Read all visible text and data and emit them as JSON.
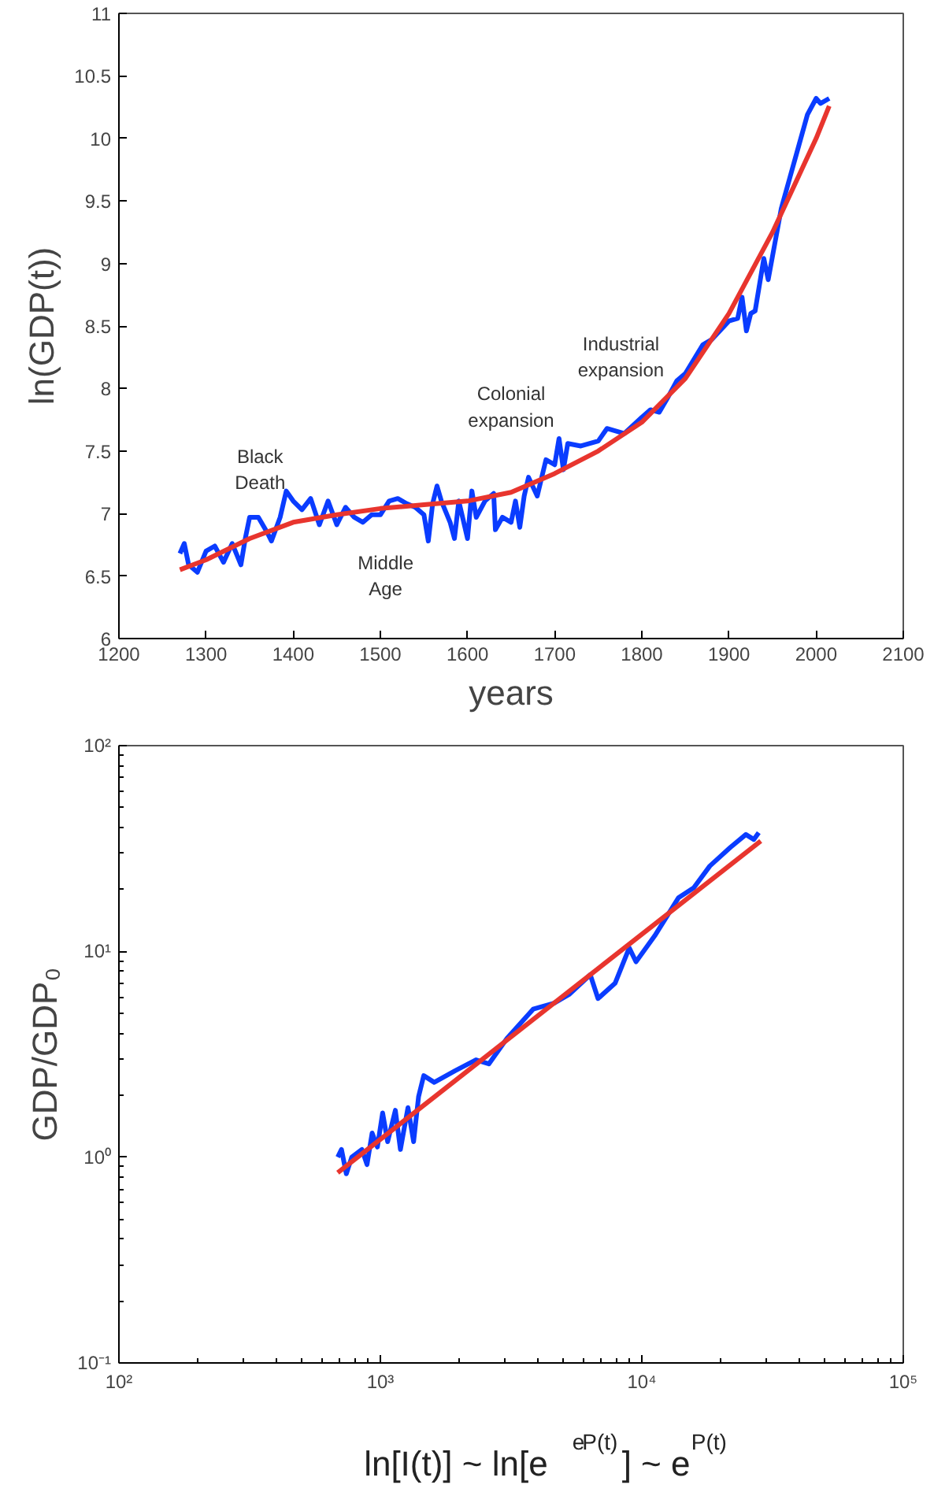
{
  "chart_data": [
    {
      "type": "line",
      "xlabel": "years",
      "ylabel": "ln(GDP(t))",
      "xlim": [
        1200,
        2100
      ],
      "xticks": [
        1200,
        1300,
        1400,
        1500,
        1600,
        1700,
        1800,
        1900,
        2000,
        2100
      ],
      "ylim": [
        6,
        11
      ],
      "yticks": [
        6,
        6.5,
        7,
        7.5,
        8,
        8.5,
        9,
        9.5,
        10,
        10.5,
        11
      ],
      "grid": false,
      "line_style": "solid",
      "series": [
        {
          "color": "#0a3cff",
          "x": [
            1270,
            1275,
            1280,
            1290,
            1300,
            1310,
            1320,
            1330,
            1340,
            1345,
            1350,
            1360,
            1370,
            1375,
            1385,
            1392,
            1400,
            1410,
            1420,
            1430,
            1440,
            1450,
            1460,
            1470,
            1480,
            1490,
            1500,
            1510,
            1520,
            1530,
            1540,
            1550,
            1555,
            1560,
            1565,
            1570,
            1580,
            1585,
            1590,
            1600,
            1605,
            1610,
            1620,
            1630,
            1632,
            1640,
            1650,
            1655,
            1660,
            1665,
            1670,
            1680,
            1690,
            1700,
            1705,
            1710,
            1715,
            1730,
            1750,
            1760,
            1780,
            1800,
            1810,
            1820,
            1830,
            1840,
            1850,
            1870,
            1880,
            1900,
            1910,
            1915,
            1920,
            1925,
            1930,
            1940,
            1945,
            1950,
            1960,
            1970,
            1980,
            1990,
            2000,
            2005,
            2015
          ],
          "values": [
            6.68,
            6.76,
            6.59,
            6.53,
            6.7,
            6.74,
            6.61,
            6.76,
            6.59,
            6.8,
            6.97,
            6.97,
            6.85,
            6.78,
            6.97,
            7.18,
            7.1,
            7.03,
            7.12,
            6.91,
            7.1,
            6.91,
            7.05,
            6.97,
            6.93,
            6.99,
            6.99,
            7.1,
            7.12,
            7.08,
            7.05,
            6.99,
            6.78,
            7.08,
            7.22,
            7.1,
            6.93,
            6.8,
            7.1,
            6.8,
            7.18,
            6.97,
            7.1,
            7.16,
            6.87,
            6.97,
            6.93,
            7.1,
            6.89,
            7.14,
            7.29,
            7.14,
            7.43,
            7.39,
            7.6,
            7.35,
            7.56,
            7.54,
            7.58,
            7.68,
            7.64,
            7.77,
            7.83,
            7.81,
            7.93,
            8.06,
            8.12,
            8.35,
            8.39,
            8.54,
            8.56,
            8.73,
            8.46,
            8.6,
            8.62,
            9.04,
            8.87,
            9.06,
            9.44,
            9.69,
            9.94,
            10.19,
            10.32,
            10.28,
            10.32
          ]
        },
        {
          "color": "#e8352e",
          "x": [
            1270,
            1300,
            1350,
            1400,
            1450,
            1500,
            1550,
            1600,
            1650,
            1700,
            1750,
            1800,
            1850,
            1900,
            1950,
            2000,
            2015
          ],
          "values": [
            6.55,
            6.63,
            6.8,
            6.93,
            6.99,
            7.04,
            7.07,
            7.1,
            7.17,
            7.32,
            7.5,
            7.73,
            8.08,
            8.6,
            9.25,
            10.0,
            10.26
          ]
        }
      ],
      "annotations": [
        "Black Death",
        "Middle Age",
        "Colonial expansion",
        "Industrial expansion"
      ]
    },
    {
      "type": "line",
      "log": "xy",
      "xlabel": "ln[I(t)] ~ ln[e$^{e}$$^{P(t)}$] ~ e$^{P(t)}$",
      "ylabel": "GDP/GDP₀",
      "xlim": [
        100,
        100000
      ],
      "xticks": [
        {
          "value": 100,
          "label": "10²"
        },
        {
          "value": 1000,
          "label": "10³"
        },
        {
          "value": 10000,
          "label": "10⁴"
        },
        {
          "value": 100000,
          "label": "10⁵"
        }
      ],
      "ylim": [
        0.1,
        100
      ],
      "yticks": [
        {
          "value": 0.1,
          "label": "10⁻¹"
        },
        {
          "value": 1,
          "label": "10⁰"
        },
        {
          "value": 10,
          "label": "10¹"
        },
        {
          "value": 100,
          "label": "10²"
        }
      ],
      "grid": false,
      "line_style": "solid",
      "series": [
        {
          "color": "#0a3cff",
          "x": [
            687,
            710,
            741,
            777,
            850,
            889,
            930,
            974,
            1020,
            1066,
            1141,
            1193,
            1275,
            1340,
            1400,
            1465,
            1607,
            1932,
            2320,
            2600,
            3050,
            3840,
            4615,
            5290,
            6350,
            6800,
            7900,
            8950,
            9500,
            11200,
            13800,
            15800,
            18200,
            21800,
            25000,
            26800,
            28000
          ],
          "values": [
            1.0,
            1.09,
            0.83,
            1.0,
            1.09,
            0.92,
            1.31,
            1.12,
            1.64,
            1.19,
            1.69,
            1.09,
            1.74,
            1.19,
            1.97,
            2.49,
            2.31,
            2.63,
            2.97,
            2.84,
            3.78,
            5.24,
            5.6,
            6.2,
            7.7,
            5.9,
            7.0,
            10.4,
            8.9,
            11.9,
            18.2,
            20.4,
            26,
            32,
            37,
            35,
            37.8
          ]
        },
        {
          "color": "#e8352e",
          "x": [
            687,
            28500
          ],
          "values": [
            0.84,
            34.4
          ]
        }
      ]
    }
  ]
}
